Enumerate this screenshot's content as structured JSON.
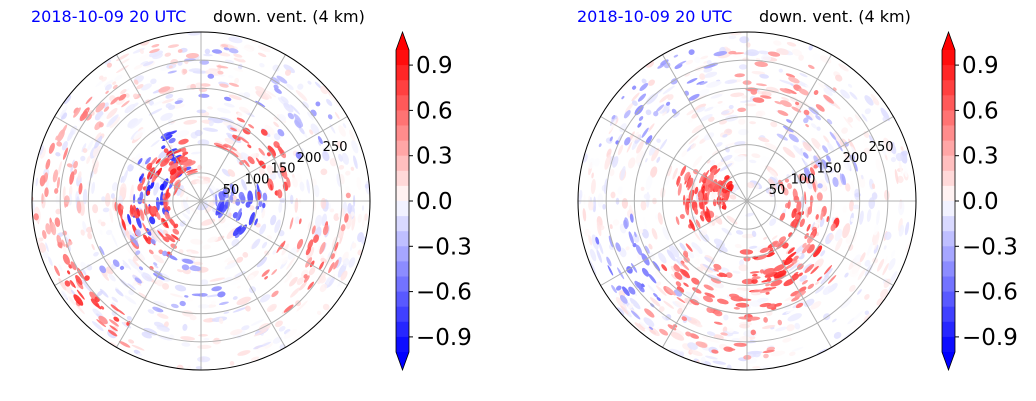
{
  "figures": [
    {
      "time_label": "2018-10-09 20 UTC",
      "variable_label": "down. vent. (4 km)"
    },
    {
      "time_label": "2018-10-09 20 UTC",
      "variable_label": "down. vent. (4 km)"
    }
  ],
  "colors": {
    "time_label": "#0000ff",
    "positive": "#ff0000",
    "negative": "#0000ff",
    "grid": "#b0b0b0"
  },
  "chart_data": [
    {
      "type": "heatmap",
      "projection": "polar",
      "title_left": "2018-10-09 20 UTC",
      "title_right": "down. vent. (4 km)",
      "radial_ticks": [
        "50",
        "100",
        "150",
        "200",
        "250"
      ],
      "radial_tick_values": [
        50,
        100,
        150,
        200,
        250
      ],
      "rmax": 300,
      "colorbar": {
        "ticks": [
          "0.9",
          "0.6",
          "0.3",
          "0.0",
          "−0.3",
          "−0.6",
          "−0.9"
        ],
        "tick_values": [
          0.9,
          0.6,
          0.3,
          0.0,
          -0.3,
          -0.6,
          -0.9
        ],
        "vmin": -1.0,
        "vmax": 1.0,
        "extend": "both",
        "colormap": "bwr"
      },
      "grid": true
    },
    {
      "type": "heatmap",
      "projection": "polar",
      "title_left": "2018-10-09 20 UTC",
      "title_right": "down. vent. (4 km)",
      "radial_ticks": [
        "50",
        "100",
        "150",
        "200",
        "250"
      ],
      "radial_tick_values": [
        50,
        100,
        150,
        200,
        250
      ],
      "rmax": 300,
      "colorbar": {
        "ticks": [
          "0.9",
          "0.6",
          "0.3",
          "0.0",
          "−0.3",
          "−0.6",
          "−0.9"
        ],
        "tick_values": [
          0.9,
          0.6,
          0.3,
          0.0,
          -0.3,
          -0.6,
          -0.9
        ],
        "vmin": -1.0,
        "vmax": 1.0,
        "extend": "both",
        "colormap": "bwr"
      },
      "grid": true
    }
  ]
}
